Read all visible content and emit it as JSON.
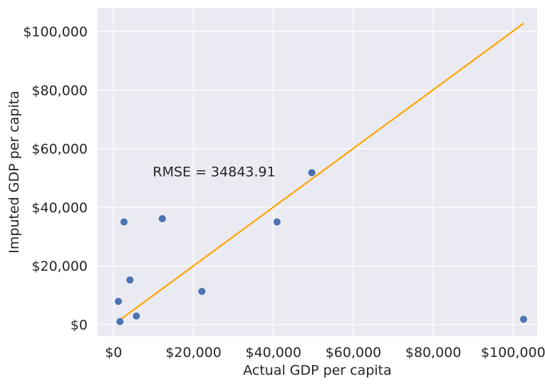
{
  "chart_data": {
    "type": "scatter",
    "title": "",
    "xlabel": "Actual GDP per capita",
    "ylabel": "Imputed GDP per capita",
    "xlim": [
      -4000,
      106000
    ],
    "ylim": [
      -4000,
      108000
    ],
    "xticks": [
      0,
      20000,
      40000,
      60000,
      80000,
      100000
    ],
    "xtick_labels": [
      "$0",
      "$20,000",
      "$40,000",
      "$60,000",
      "$80,000",
      "$100,000"
    ],
    "yticks": [
      0,
      20000,
      40000,
      60000,
      80000,
      100000
    ],
    "ytick_labels": [
      "$0",
      "$20,000",
      "$40,000",
      "$60,000",
      "$80,000",
      "$100,000"
    ],
    "grid": true,
    "background_color": "#eaeaf2",
    "point_color": "#4c72b0",
    "line_color": "#ffa500",
    "points": [
      {
        "x": 1200,
        "y": 7900
      },
      {
        "x": 1600,
        "y": 1000
      },
      {
        "x": 2600,
        "y": 35000
      },
      {
        "x": 4100,
        "y": 15200
      },
      {
        "x": 5700,
        "y": 2900
      },
      {
        "x": 12200,
        "y": 36100
      },
      {
        "x": 22100,
        "y": 11300
      },
      {
        "x": 40900,
        "y": 35000
      },
      {
        "x": 49600,
        "y": 51800
      },
      {
        "x": 102600,
        "y": 1800
      }
    ],
    "fit_line": {
      "x": [
        1200,
        102600
      ],
      "y": [
        1200,
        102700
      ]
    },
    "annotation": {
      "text": "RMSE = 34843.91",
      "x": 9800,
      "y": 50500
    }
  }
}
